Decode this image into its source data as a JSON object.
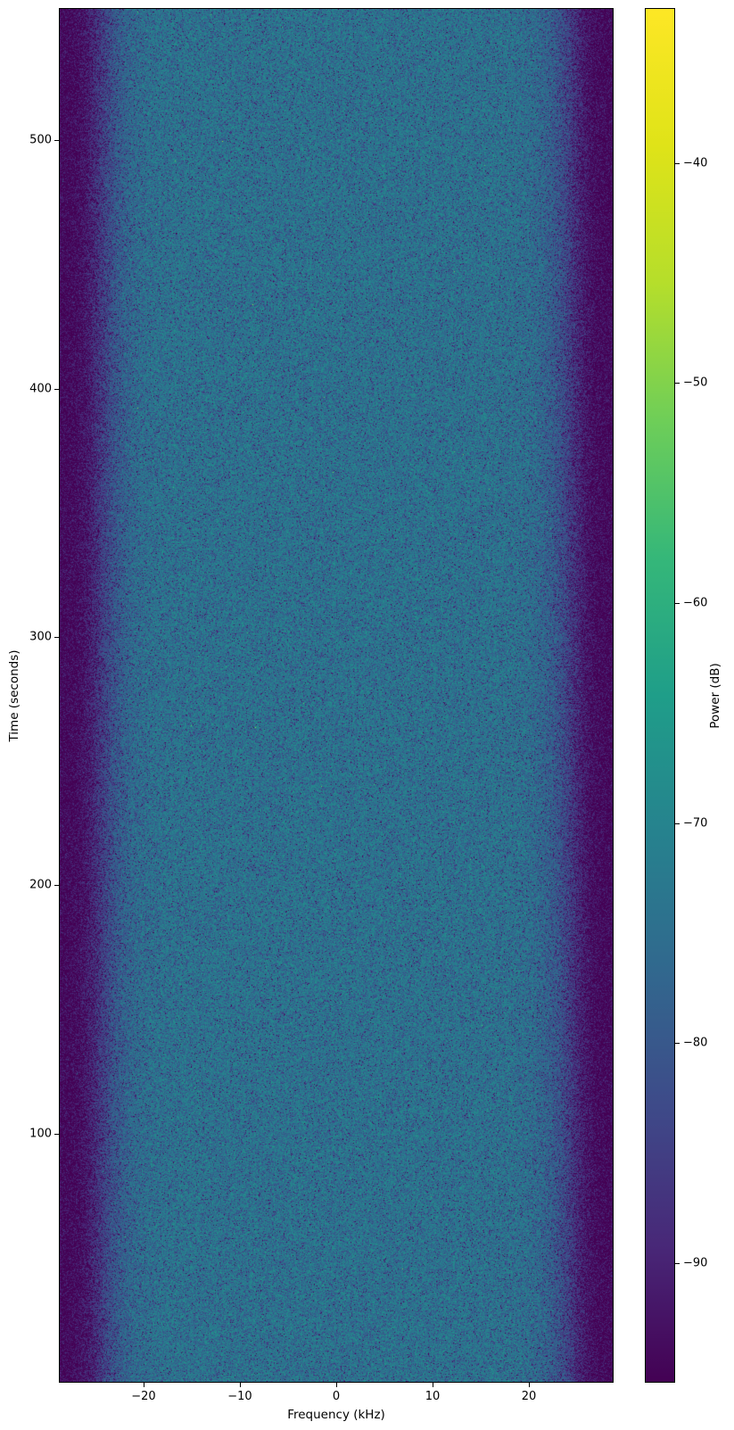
{
  "figure": {
    "background_color": "#ffffff",
    "text_color": "#000000",
    "spine_color": "#000000"
  },
  "chart_data": {
    "type": "heatmap",
    "subtype": "spectrogram",
    "title": "",
    "xlabel": "Frequency (kHz)",
    "ylabel": "Time (seconds)",
    "colorbar_label": "Power (dB)",
    "xlim": [
      -28.7,
      28.7
    ],
    "ylim": [
      0,
      553
    ],
    "clim": [
      -95.4,
      -33
    ],
    "grid": false,
    "legend": null,
    "xticks": {
      "values": [
        -20,
        -10,
        0,
        10,
        20
      ],
      "labels": [
        "−20",
        "−10",
        "0",
        "10",
        "20"
      ]
    },
    "yticks": {
      "values": [
        100,
        200,
        300,
        400,
        500
      ],
      "labels": [
        "100",
        "200",
        "300",
        "400",
        "500"
      ]
    },
    "colorbar_ticks": {
      "values": [
        -40,
        -50,
        -60,
        -70,
        -80,
        -90
      ],
      "labels": [
        "−40",
        "−50",
        "−60",
        "−70",
        "−80",
        "−90"
      ]
    },
    "colormap": {
      "name": "viridis",
      "stops": [
        "#440154",
        "#482878",
        "#3e4a89",
        "#31688e",
        "#26828e",
        "#1f9e89",
        "#35b779",
        "#6ece58",
        "#b5de2b",
        "#dfe318",
        "#fde725"
      ]
    },
    "signal_model": {
      "description": "Flat wideband noise passband centered at 0 kHz with steep band-edge rolloff into a dark noise floor; uniform speckle texture over the full 0-553 s duration, rare isolated bright specks",
      "passband_mean_power_db": -75,
      "stopband_mean_power_db": -96,
      "band_halfwidth_khz": 24.8,
      "rolloff_order": 14,
      "speckle_distribution": "exponential",
      "bright_speck_probability": 7e-05,
      "bright_speck_boost_db": 18
    }
  }
}
